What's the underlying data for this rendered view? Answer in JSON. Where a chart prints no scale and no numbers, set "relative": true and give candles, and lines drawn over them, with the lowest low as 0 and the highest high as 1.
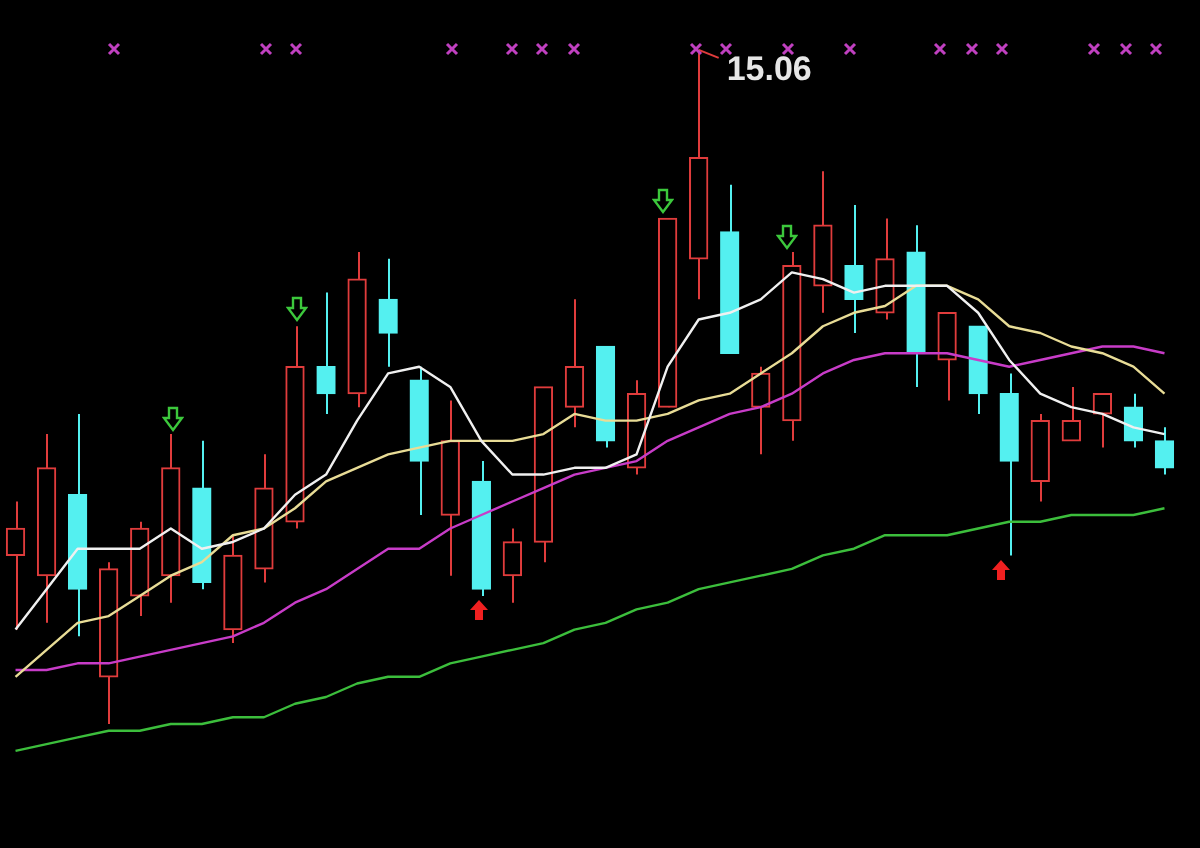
{
  "chart_data": {
    "type": "candlestick",
    "relative": true,
    "categories": [
      null,
      null,
      null,
      null,
      null,
      null,
      null,
      null,
      null,
      null,
      null,
      null,
      null,
      null,
      null,
      null,
      null,
      null,
      null,
      null,
      null,
      null,
      null,
      null,
      null,
      null,
      null,
      null,
      null,
      null,
      null,
      null,
      null,
      null,
      null,
      null,
      null,
      null
    ],
    "ohlc": [
      [
        0.25,
        0.33,
        0.14,
        0.29
      ],
      [
        0.22,
        0.43,
        0.15,
        0.38
      ],
      [
        0.34,
        0.46,
        0.13,
        0.2
      ],
      [
        0.07,
        0.24,
        0,
        0.23
      ],
      [
        0.19,
        0.3,
        0.16,
        0.29
      ],
      [
        0.22,
        0.43,
        0.18,
        0.38
      ],
      [
        0.35,
        0.42,
        0.2,
        0.21
      ],
      [
        0.14,
        0.28,
        0.12,
        0.25
      ],
      [
        0.23,
        0.4,
        0.21,
        0.35
      ],
      [
        0.3,
        0.59,
        0.29,
        0.53
      ],
      [
        0.53,
        0.64,
        0.46,
        0.49
      ],
      [
        0.49,
        0.7,
        0.47,
        0.66
      ],
      [
        0.63,
        0.69,
        0.53,
        0.58
      ],
      [
        0.51,
        0.53,
        0.31,
        0.39
      ],
      [
        0.31,
        0.48,
        0.22,
        0.42
      ],
      [
        0.36,
        0.39,
        0.19,
        0.2
      ],
      [
        0.22,
        0.29,
        0.18,
        0.27
      ],
      [
        0.27,
        0.5,
        0.24,
        0.5
      ],
      [
        0.47,
        0.63,
        0.44,
        0.53
      ],
      [
        0.56,
        0.56,
        0.41,
        0.42
      ],
      [
        0.38,
        0.51,
        0.37,
        0.49
      ],
      [
        0.47,
        0.75,
        0.47,
        0.75
      ],
      [
        0.69,
        1,
        0.63,
        0.84
      ],
      [
        0.73,
        0.8,
        0.55,
        0.55
      ],
      [
        0.47,
        0.53,
        0.4,
        0.52
      ],
      [
        0.45,
        0.7,
        0.42,
        0.68
      ],
      [
        0.65,
        0.82,
        0.61,
        0.74
      ],
      [
        0.68,
        0.77,
        0.58,
        0.63
      ],
      [
        0.61,
        0.75,
        0.6,
        0.69
      ],
      [
        0.7,
        0.74,
        0.5,
        0.55
      ],
      [
        0.54,
        0.61,
        0.48,
        0.61
      ],
      [
        0.59,
        0.59,
        0.46,
        0.49
      ],
      [
        0.49,
        0.52,
        0.25,
        0.39
      ],
      [
        0.36,
        0.46,
        0.33,
        0.45
      ],
      [
        0.42,
        0.5,
        0.42,
        0.45
      ],
      [
        0.46,
        0.49,
        0.41,
        0.49
      ],
      [
        0.47,
        0.49,
        0.41,
        0.42
      ],
      [
        0.42,
        0.44,
        0.37,
        0.38
      ]
    ],
    "colors": [
      "#e03c3c",
      "#e03c3c",
      "#54f0f0",
      "#e03c3c",
      "#e03c3c",
      "#e03c3c",
      "#54f0f0",
      "#e03c3c",
      "#e03c3c",
      "#e03c3c",
      "#54f0f0",
      "#e03c3c",
      "#54f0f0",
      "#54f0f0",
      "#e03c3c",
      "#54f0f0",
      "#e03c3c",
      "#e03c3c",
      "#e03c3c",
      "#54f0f0",
      "#e03c3c",
      "#e03c3c",
      "#e03c3c",
      "#54f0f0",
      "#e03c3c",
      "#e03c3c",
      "#e03c3c",
      "#54f0f0",
      "#e03c3c",
      "#54f0f0",
      "#e03c3c",
      "#54f0f0",
      "#54f0f0",
      "#e03c3c",
      "#e03c3c",
      "#e03c3c",
      "#54f0f0",
      "#54f0f0"
    ],
    "series": [
      {
        "type": "line",
        "color": "#f0f0f0",
        "values": [
          0.14,
          0.2,
          0.26,
          0.26,
          0.26,
          0.29,
          0.26,
          0.27,
          0.29,
          0.34,
          0.37,
          0.45,
          0.52,
          0.53,
          0.5,
          0.42,
          0.37,
          0.37,
          0.38,
          0.38,
          0.4,
          0.53,
          0.6,
          0.61,
          0.63,
          0.67,
          0.66,
          0.64,
          0.65,
          0.65,
          0.65,
          0.61,
          0.54,
          0.49,
          0.47,
          0.46,
          0.44,
          0.43
        ]
      },
      {
        "type": "line",
        "color": "#e8dc96",
        "values": [
          0.07,
          0.11,
          0.15,
          0.16,
          0.19,
          0.22,
          0.24,
          0.28,
          0.29,
          0.32,
          0.36,
          0.38,
          0.4,
          0.41,
          0.42,
          0.42,
          0.42,
          0.43,
          0.46,
          0.45,
          0.45,
          0.46,
          0.48,
          0.49,
          0.52,
          0.55,
          0.59,
          0.61,
          0.62,
          0.65,
          0.65,
          0.63,
          0.59,
          0.58,
          0.56,
          0.55,
          0.53,
          0.49
        ]
      },
      {
        "type": "line",
        "color": "#c83cc8",
        "values": [
          0.08,
          0.08,
          0.09,
          0.09,
          0.1,
          0.11,
          0.12,
          0.13,
          0.15,
          0.18,
          0.2,
          0.23,
          0.26,
          0.26,
          0.29,
          0.31,
          0.33,
          0.35,
          0.37,
          0.38,
          0.39,
          0.42,
          0.44,
          0.46,
          0.47,
          0.49,
          0.52,
          0.54,
          0.55,
          0.55,
          0.55,
          0.54,
          0.53,
          0.54,
          0.55,
          0.56,
          0.56,
          0.55
        ]
      },
      {
        "type": "line",
        "color": "#3cbe3c",
        "values": [
          -0.04,
          -0.03,
          -0.02,
          -0.01,
          -0.01,
          0,
          0,
          0.01,
          0.01,
          0.03,
          0.04,
          0.06,
          0.07,
          0.07,
          0.09,
          0.1,
          0.11,
          0.12,
          0.14,
          0.15,
          0.17,
          0.18,
          0.2,
          0.21,
          0.22,
          0.23,
          0.25,
          0.26,
          0.28,
          0.28,
          0.28,
          0.29,
          0.3,
          0.3,
          0.31,
          0.31,
          0.31,
          0.32
        ]
      }
    ],
    "annotations": [
      "15.06"
    ]
  }
}
